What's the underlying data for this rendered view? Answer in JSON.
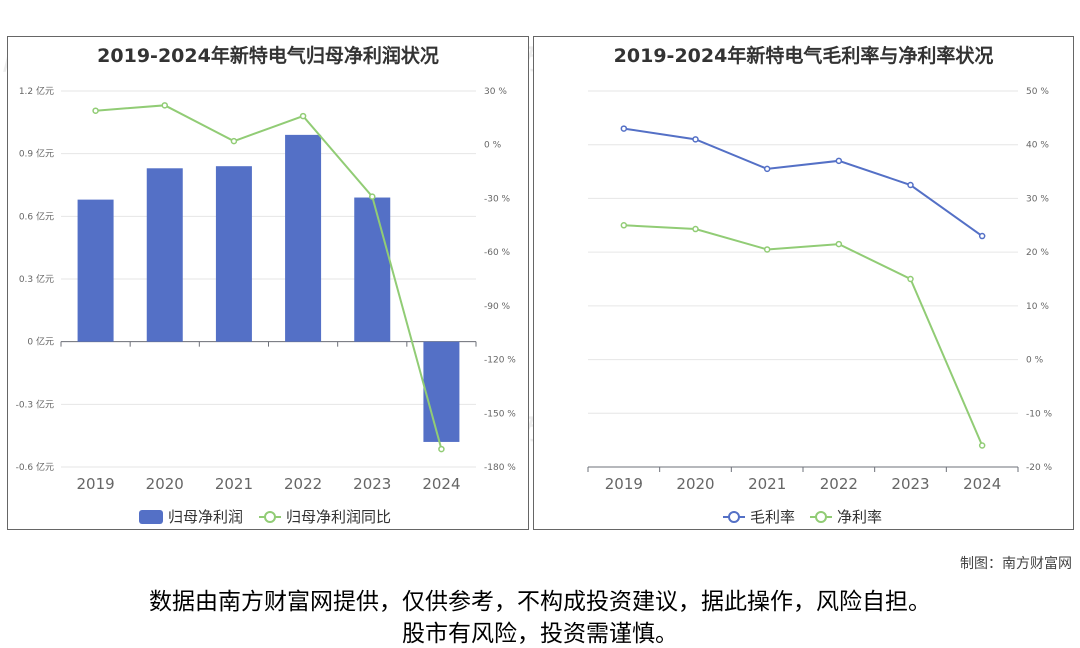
{
  "watermark": {
    "cn": "南方财富网",
    "en": "southmoney.com"
  },
  "footer": {
    "credit": "制图：南方财富网",
    "disclaimer_line1": "数据由南方财富网提供，仅供参考，不构成投资建议，据此操作，风险自担。",
    "disclaimer_line2": "股市有风险，投资需谨慎。"
  },
  "colors": {
    "bar": "#5470c6",
    "blue_line": "#5470c6",
    "green_line": "#91cc75",
    "grid": "#e6e6e6",
    "axis_text": "#666666"
  },
  "chart_data": [
    {
      "type": "bar",
      "title": "2019-2024年新特电气归母净利润状况",
      "categories": [
        "2019",
        "2020",
        "2021",
        "2022",
        "2023",
        "2024"
      ],
      "series": [
        {
          "name": "归母净利润",
          "type": "bar",
          "axis": "left",
          "values": [
            0.68,
            0.83,
            0.84,
            0.99,
            0.69,
            -0.48
          ]
        },
        {
          "name": "归母净利润同比",
          "type": "line",
          "axis": "right",
          "values": [
            19,
            22,
            2,
            16,
            -29,
            -170
          ]
        }
      ],
      "y_left": {
        "min": -0.6,
        "max": 1.2,
        "ticks": [
          "1.2 亿元",
          "0.9 亿元",
          "0.6 亿元",
          "0.3 亿元",
          "0 亿元",
          "-0.3 亿元",
          "-0.6 亿元"
        ]
      },
      "y_right": {
        "min": -180,
        "max": 30,
        "ticks": [
          "30 %",
          "0 %",
          "-30 %",
          "-60 %",
          "-90 %",
          "-120 %",
          "-150 %",
          "-180 %"
        ]
      },
      "grid": true,
      "legend": "bottom-center"
    },
    {
      "type": "line",
      "title": "2019-2024年新特电气毛利率与净利率状况",
      "categories": [
        "2019",
        "2020",
        "2021",
        "2022",
        "2023",
        "2024"
      ],
      "series": [
        {
          "name": "毛利率",
          "values": [
            43,
            41,
            35.5,
            37,
            32.5,
            23
          ]
        },
        {
          "name": "净利率",
          "values": [
            25,
            24.3,
            20.5,
            21.5,
            15,
            -16
          ]
        }
      ],
      "y_right": {
        "min": -20,
        "max": 50,
        "ticks": [
          "50 %",
          "40 %",
          "30 %",
          "20 %",
          "10 %",
          "0 %",
          "-10 %",
          "-20 %"
        ]
      },
      "grid": true,
      "legend": "bottom-center"
    }
  ]
}
